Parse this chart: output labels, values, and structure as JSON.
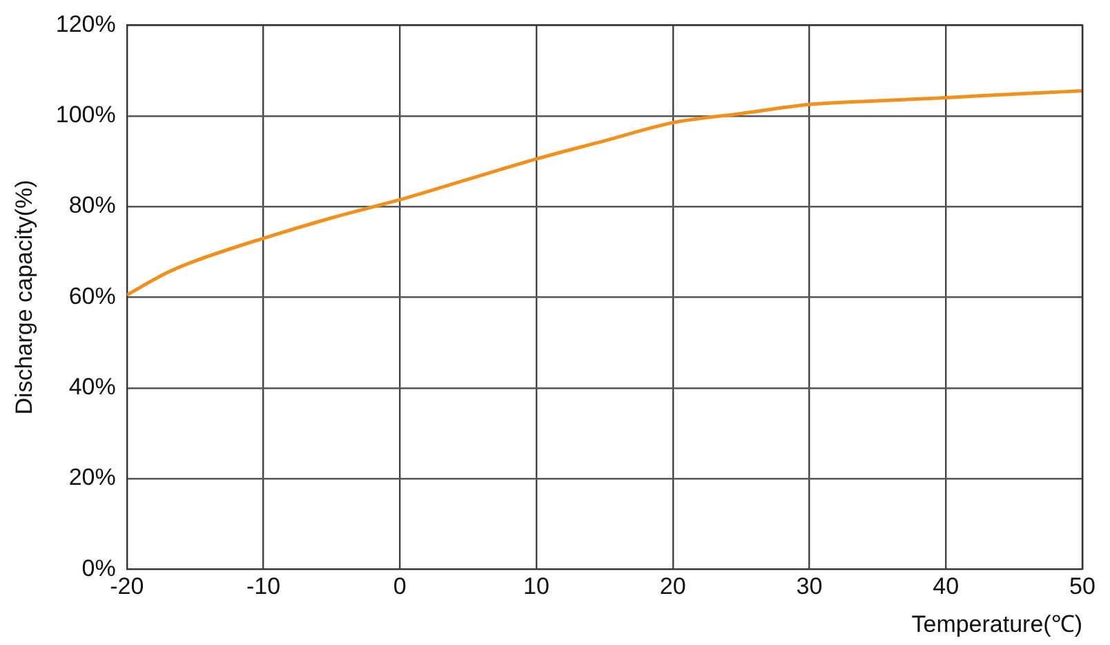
{
  "chart_data": {
    "type": "line",
    "xlabel": "Temperature(℃)",
    "ylabel": "Discharge capacity(%)",
    "x": [
      -20,
      -17,
      -15,
      -10,
      -5,
      0,
      5,
      10,
      15,
      20,
      25,
      30,
      35,
      40,
      45,
      50
    ],
    "series": [
      {
        "color": "#f0901e",
        "values": [
          60.5,
          65.5,
          68,
          73,
          77.5,
          81.5,
          86,
          90.5,
          94.5,
          98.5,
          100.5,
          102.5,
          103.3,
          104,
          104.8,
          105.5
        ]
      }
    ],
    "xlim": [
      -20,
      50
    ],
    "xticks": [
      -20,
      -10,
      0,
      10,
      20,
      30,
      40,
      50
    ],
    "ylim": [
      0,
      120
    ],
    "yticks": [
      {
        "value": 0,
        "label": "0%"
      },
      {
        "value": 20,
        "label": "20%"
      },
      {
        "value": 40,
        "label": "40%"
      },
      {
        "value": 60,
        "label": "60%"
      },
      {
        "value": 80,
        "label": "80%"
      },
      {
        "value": 100,
        "label": "100%"
      },
      {
        "value": 120,
        "label": "120%"
      }
    ],
    "grid": true,
    "marker": "none",
    "line_style": "solid"
  }
}
